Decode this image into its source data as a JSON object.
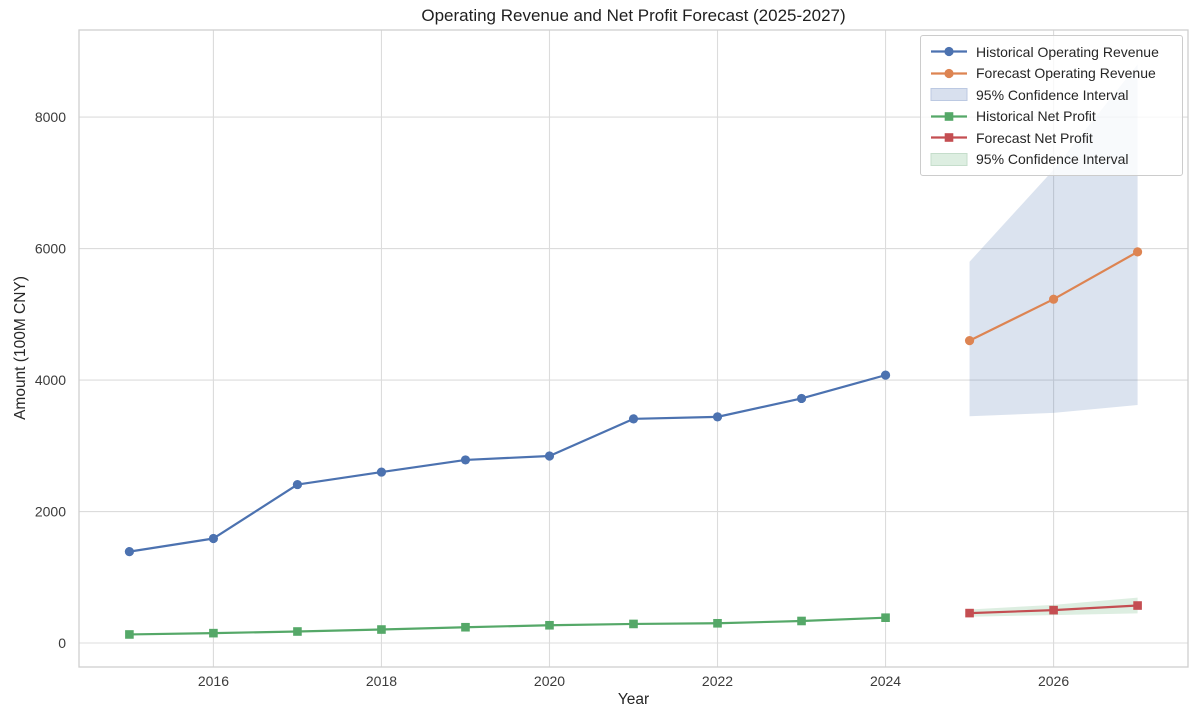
{
  "title": "Operating Revenue and Net Profit Forecast (2025-2027)",
  "axes": {
    "xlabel": "Year",
    "ylabel": "Amount (100M CNY)",
    "x_ticks": [
      2016,
      2018,
      2020,
      2022,
      2024,
      2026
    ],
    "y_ticks": [
      0,
      2000,
      4000,
      6000,
      8000
    ]
  },
  "legend": {
    "items": [
      {
        "label": "Historical Operating Revenue",
        "type": "line",
        "marker": "circle",
        "color": "#4C72B0"
      },
      {
        "label": "Forecast Operating Revenue",
        "type": "line",
        "marker": "circle",
        "color": "#DD8452"
      },
      {
        "label": "95% Confidence Interval",
        "type": "band",
        "color": "rgba(76,114,176,0.22)",
        "border": "#bcc9e2"
      },
      {
        "label": "Historical Net Profit",
        "type": "line",
        "marker": "square",
        "color": "#55A868"
      },
      {
        "label": "Forecast Net Profit",
        "type": "line",
        "marker": "square",
        "color": "#C44E52"
      },
      {
        "label": "95% Confidence Interval",
        "type": "band",
        "color": "rgba(85,168,104,0.20)",
        "border": "#c5ddcb"
      }
    ]
  },
  "colors": {
    "hist_revenue": "#4C72B0",
    "forecast_revenue": "#DD8452",
    "hist_profit": "#55A868",
    "forecast_profit": "#C44E52",
    "revenue_ci_fill": "rgba(76,114,176,0.20)",
    "profit_ci_fill": "rgba(85,168,104,0.20)",
    "grid": "#dcdcdc",
    "spine": "#cfcfcf",
    "tick_text": "#3b3b3b"
  },
  "chart_data": {
    "type": "line",
    "title": "Operating Revenue and Net Profit Forecast (2025-2027)",
    "xlabel": "Year",
    "ylabel": "Amount (100M CNY)",
    "xlim": [
      2014.4,
      2027.6
    ],
    "ylim": [
      -365,
      9325
    ],
    "grid": true,
    "legend_position": "upper right",
    "series": [
      {
        "name": "Historical Operating Revenue",
        "color": "#4C72B0",
        "marker": "circle",
        "x": [
          2015,
          2016,
          2017,
          2018,
          2019,
          2020,
          2021,
          2022,
          2023,
          2024
        ],
        "y": [
          1390,
          1590,
          2410,
          2600,
          2785,
          2845,
          3410,
          3440,
          3720,
          4075
        ]
      },
      {
        "name": "Forecast Operating Revenue",
        "color": "#DD8452",
        "marker": "circle",
        "x": [
          2025,
          2026,
          2027
        ],
        "y": [
          4600,
          5230,
          5950
        ]
      },
      {
        "name": "Historical Net Profit",
        "color": "#55A868",
        "marker": "square",
        "x": [
          2015,
          2016,
          2017,
          2018,
          2019,
          2020,
          2021,
          2022,
          2023,
          2024
        ],
        "y": [
          130,
          150,
          175,
          205,
          240,
          270,
          290,
          300,
          335,
          385
        ]
      },
      {
        "name": "Forecast Net Profit",
        "color": "#C44E52",
        "marker": "square",
        "x": [
          2025,
          2026,
          2027
        ],
        "y": [
          455,
          500,
          570
        ]
      }
    ],
    "bands": [
      {
        "name": "95% Confidence Interval (Operating Revenue)",
        "fill": "rgba(76,114,176,0.20)",
        "x": [
          2025,
          2026,
          2027
        ],
        "lower": [
          3450,
          3500,
          3620
        ],
        "upper": [
          5800,
          7200,
          8800
        ]
      },
      {
        "name": "95% Confidence Interval (Net Profit)",
        "fill": "rgba(85,168,104,0.20)",
        "x": [
          2025,
          2026,
          2027
        ],
        "lower": [
          400,
          425,
          450
        ],
        "upper": [
          510,
          580,
          690
        ]
      }
    ]
  }
}
